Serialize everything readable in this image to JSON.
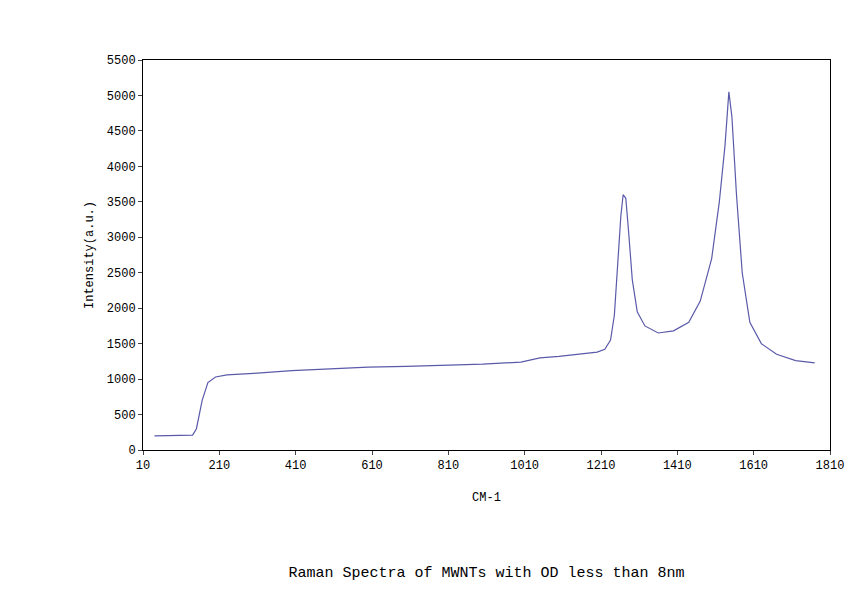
{
  "chart_data": {
    "type": "line",
    "title": "Raman Spectra of MWNTs with OD less than 8nm",
    "x_label": "CM-1",
    "y_label": "Intensity(a.u.)",
    "x": [
      40,
      80,
      120,
      140,
      150,
      165,
      180,
      200,
      230,
      300,
      400,
      500,
      600,
      700,
      800,
      900,
      1000,
      1050,
      1100,
      1150,
      1200,
      1220,
      1235,
      1245,
      1255,
      1262,
      1268,
      1275,
      1282,
      1292,
      1305,
      1325,
      1360,
      1400,
      1440,
      1470,
      1500,
      1520,
      1535,
      1545,
      1553,
      1565,
      1580,
      1600,
      1630,
      1670,
      1720,
      1770
    ],
    "series": [
      {
        "name": "Raman",
        "color": "#5a5aaa",
        "values": [
          200,
          200,
          200,
          210,
          300,
          700,
          950,
          1030,
          1060,
          1080,
          1120,
          1150,
          1170,
          1180,
          1190,
          1210,
          1240,
          1300,
          1320,
          1350,
          1380,
          1420,
          1550,
          1900,
          2700,
          3300,
          3600,
          3550,
          3100,
          2400,
          1950,
          1750,
          1650,
          1680,
          1800,
          2100,
          2700,
          3500,
          4300,
          5050,
          4700,
          3600,
          2500,
          1800,
          1500,
          1350,
          1260,
          1230
        ]
      }
    ],
    "xlim": [
      10,
      1810
    ],
    "xticks": [
      10,
      210,
      410,
      610,
      810,
      1010,
      1210,
      1410,
      1610,
      1810
    ],
    "ylim": [
      0,
      5500
    ],
    "yticks": [
      0,
      500,
      1000,
      1500,
      2000,
      2500,
      3000,
      3500,
      4000,
      4500,
      5000,
      5500
    ],
    "grid": false
  }
}
